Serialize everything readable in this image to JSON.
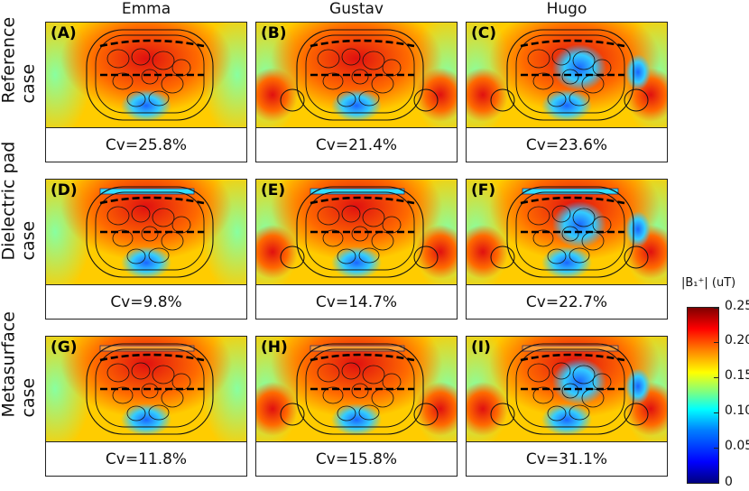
{
  "columns": [
    "Emma",
    "Gustav",
    "Hugo"
  ],
  "rows": [
    {
      "label_line1": "Reference",
      "label_line2": "case"
    },
    {
      "label_line1": "Dielectric pad",
      "label_line2": "case"
    },
    {
      "label_line1": "Metasurface",
      "label_line2": "case"
    }
  ],
  "panels": [
    {
      "letter": "(A)",
      "cv": "Cv=25.8%"
    },
    {
      "letter": "(B)",
      "cv": "Cv=21.4%"
    },
    {
      "letter": "(C)",
      "cv": "Cv=23.6%"
    },
    {
      "letter": "(D)",
      "cv": "Cv=9.8%"
    },
    {
      "letter": "(E)",
      "cv": "Cv=14.7%"
    },
    {
      "letter": "(F)",
      "cv": "Cv=22.7%"
    },
    {
      "letter": "(G)",
      "cv": "Cv=11.8%"
    },
    {
      "letter": "(H)",
      "cv": "Cv=15.8%"
    },
    {
      "letter": "(I)",
      "cv": "Cv=31.1%"
    }
  ],
  "colorbar": {
    "title": "|B₁⁺| (uT)",
    "ticks": [
      "0.25",
      "0.20",
      "0.15",
      "0.10",
      "0.05",
      "0"
    ],
    "colors": [
      "#00007f",
      "#0000ff",
      "#00ffff",
      "#ffff00",
      "#ff0000",
      "#7f0000"
    ]
  }
}
